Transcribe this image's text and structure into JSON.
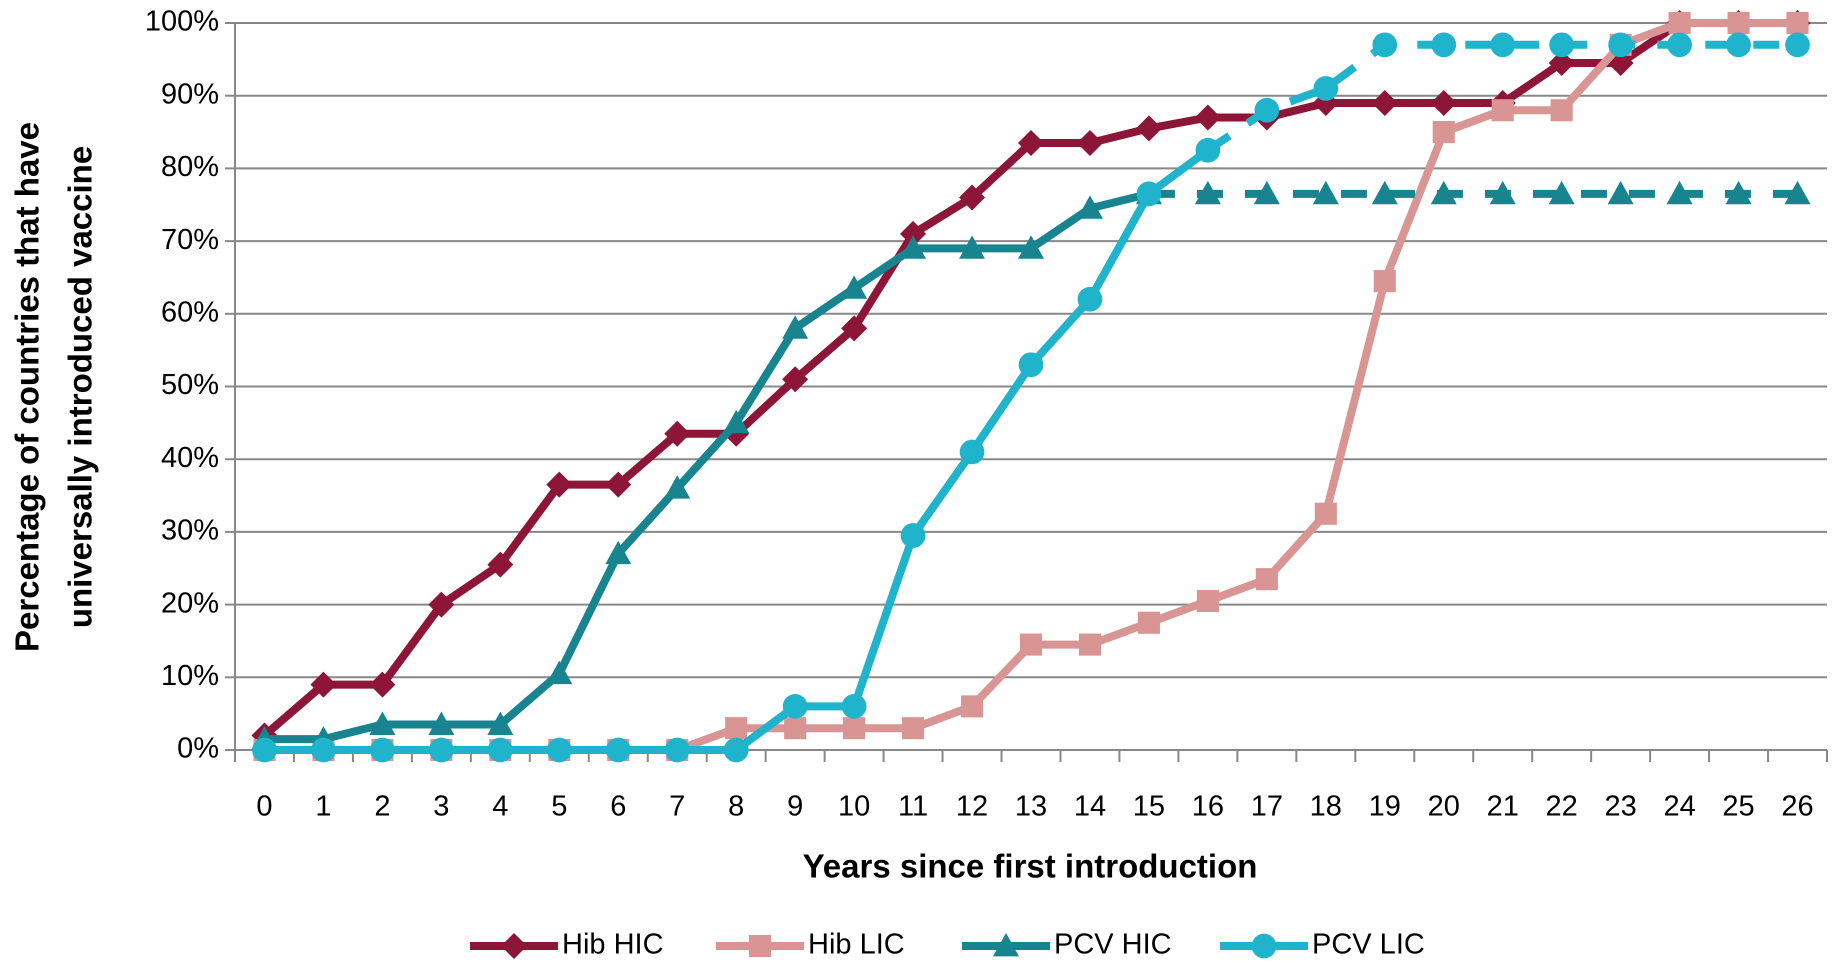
{
  "chart_data": {
    "type": "line",
    "xlabel": "Years since first introduction",
    "ylabel": [
      "Percentage of countries that have",
      "universally introduced vaccine"
    ],
    "x": [
      0,
      1,
      2,
      3,
      4,
      5,
      6,
      7,
      8,
      9,
      10,
      11,
      12,
      13,
      14,
      15,
      16,
      17,
      18,
      19,
      20,
      21,
      22,
      23,
      24,
      25,
      26
    ],
    "xlim": [
      -0.5,
      26.5
    ],
    "ylim": [
      0,
      100
    ],
    "yticks": [
      {
        "value": 0,
        "label": "0%"
      },
      {
        "value": 10,
        "label": "10%"
      },
      {
        "value": 20,
        "label": "20%"
      },
      {
        "value": 30,
        "label": "30%"
      },
      {
        "value": 40,
        "label": "40%"
      },
      {
        "value": 50,
        "label": "50%"
      },
      {
        "value": 60,
        "label": "60%"
      },
      {
        "value": 70,
        "label": "70%"
      },
      {
        "value": 80,
        "label": "80%"
      },
      {
        "value": 90,
        "label": "90%"
      },
      {
        "value": 100,
        "label": "100%"
      }
    ],
    "grid": true,
    "legend": "bottom",
    "series": [
      {
        "name": "Hib HIC",
        "color": "#8c1538",
        "marker": "diamond",
        "values": [
          2,
          9,
          9,
          20,
          25.5,
          36.5,
          36.5,
          43.5,
          43.5,
          51,
          58,
          71,
          76,
          83.5,
          83.5,
          85.5,
          87,
          87,
          89,
          89,
          89,
          89,
          94.5,
          94.5,
          100,
          100,
          100
        ]
      },
      {
        "name": "Hib LIC",
        "color": "#d99594",
        "marker": "square",
        "values": [
          0,
          0,
          0,
          0,
          0,
          0,
          0,
          0,
          3,
          3,
          3,
          3,
          6,
          14.5,
          14.5,
          17.5,
          20.5,
          23.5,
          32.5,
          64.5,
          85,
          88,
          88,
          97,
          100,
          100,
          100
        ]
      },
      {
        "name": "PCV HIC",
        "color": "#17848f",
        "marker": "triangle",
        "dash_from": 15,
        "values": [
          1.5,
          1.5,
          3.5,
          3.5,
          3.5,
          10.5,
          27,
          36,
          45,
          58,
          63.5,
          69,
          69,
          69,
          74.5,
          76.5,
          76.5,
          76.5,
          76.5,
          76.5,
          76.5,
          76.5,
          76.5,
          76.5,
          76.5,
          76.5,
          76.5
        ]
      },
      {
        "name": "PCV LIC",
        "color": "#1fb3cc",
        "marker": "circle",
        "dash_from": 16,
        "values": [
          0,
          0,
          0,
          0,
          0,
          0,
          0,
          0,
          0,
          6,
          6,
          29.5,
          41,
          53,
          62,
          76.5,
          82.5,
          88,
          91,
          97,
          97,
          97,
          97,
          97,
          97,
          97,
          97
        ]
      }
    ]
  }
}
